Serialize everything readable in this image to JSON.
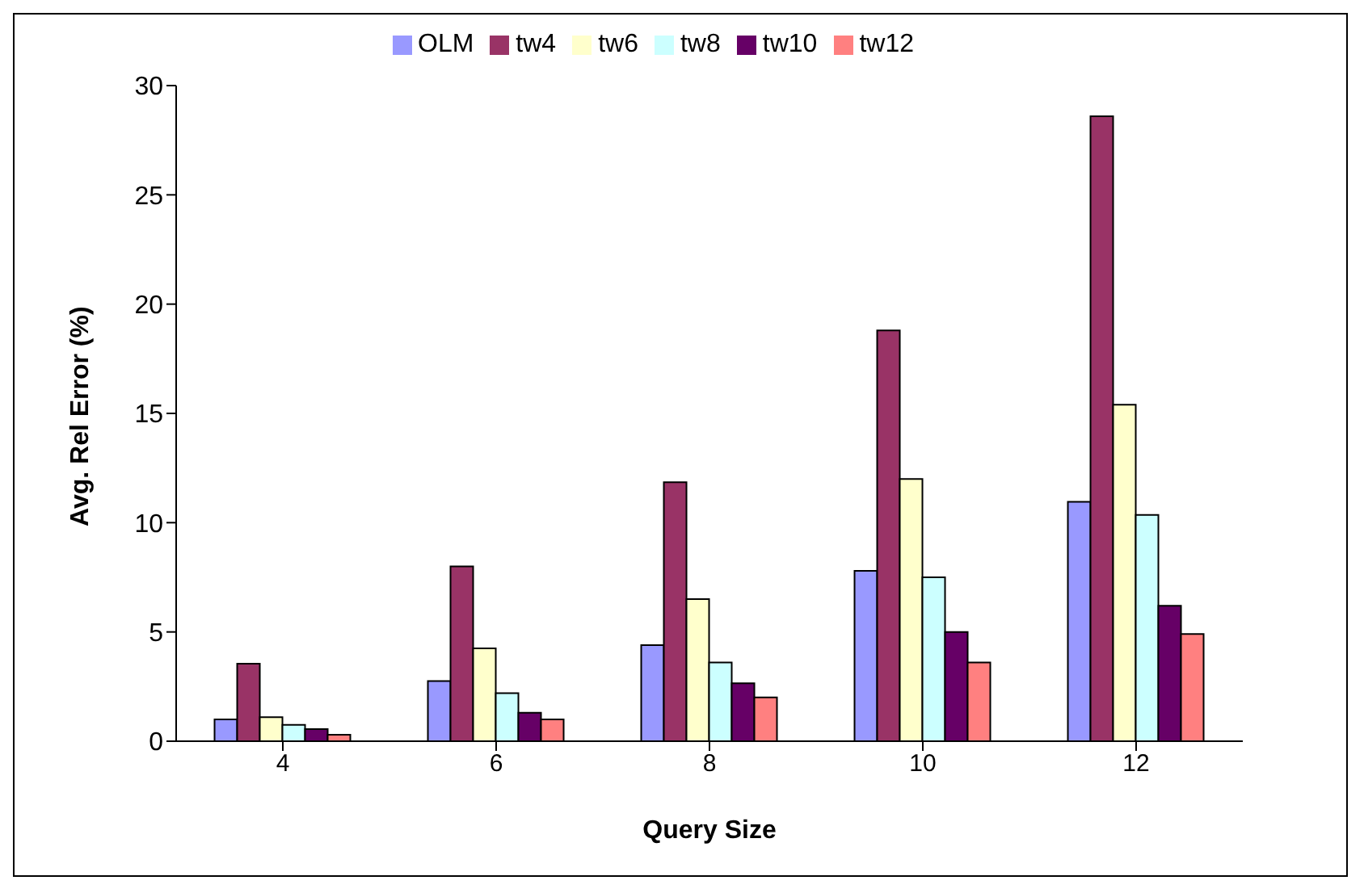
{
  "chart_data": {
    "type": "bar",
    "xlabel": "Query Size",
    "ylabel": "Avg. Rel Error (%)",
    "categories": [
      "4",
      "6",
      "8",
      "10",
      "12"
    ],
    "series": [
      {
        "name": "OLM",
        "color": "#9999ff",
        "values": [
          1.0,
          2.75,
          4.4,
          7.8,
          10.95
        ]
      },
      {
        "name": "tw4",
        "color": "#993366",
        "values": [
          3.55,
          8.0,
          11.85,
          18.8,
          28.6
        ]
      },
      {
        "name": "tw6",
        "color": "#ffffcc",
        "values": [
          1.1,
          4.25,
          6.5,
          12.0,
          15.4
        ]
      },
      {
        "name": "tw8",
        "color": "#ccffff",
        "values": [
          0.75,
          2.2,
          3.6,
          7.5,
          10.35
        ]
      },
      {
        "name": "tw10",
        "color": "#660066",
        "values": [
          0.55,
          1.3,
          2.65,
          5.0,
          6.2
        ]
      },
      {
        "name": "tw12",
        "color": "#ff8080",
        "values": [
          0.3,
          1.0,
          2.0,
          3.6,
          4.9
        ]
      }
    ],
    "ylim": [
      0,
      30
    ],
    "yticks": [
      0,
      5,
      10,
      15,
      20,
      25,
      30
    ],
    "grid": false,
    "legend": "top"
  }
}
